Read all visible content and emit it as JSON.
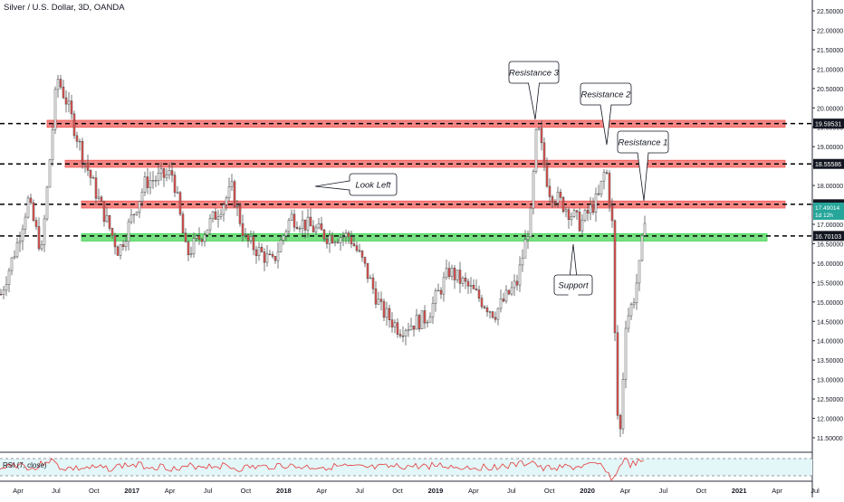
{
  "chart_data": {
    "type": "candlestick",
    "title": "Silver / U.S. Dollar, 3D, OANDA",
    "ylim": [
      11.5,
      22.5
    ],
    "y_ticks": [
      "22.50000",
      "22.00000",
      "21.50000",
      "21.00000",
      "20.50000",
      "20.00000",
      "19.50000",
      "19.00000",
      "18.50000",
      "18.00000",
      "17.50000",
      "17.00000",
      "16.50000",
      "16.00000",
      "15.50000",
      "15.00000",
      "14.50000",
      "14.00000",
      "13.50000",
      "13.00000",
      "12.50000",
      "12.00000",
      "11.50000"
    ],
    "x_ticks": [
      "Apr",
      "Jul",
      "Oct",
      "2017",
      "Apr",
      "Jul",
      "Oct",
      "2018",
      "Apr",
      "Jul",
      "Oct",
      "2019",
      "Apr",
      "Jul",
      "Oct",
      "2020",
      "Apr",
      "Jul",
      "Oct",
      "2021",
      "Apr",
      "Jul"
    ],
    "horizontal_levels": [
      {
        "value": 19.59531,
        "label": "19.59531",
        "zone": [
          19.5,
          19.68
        ],
        "zone_color": "#ef5350"
      },
      {
        "value": 18.55586,
        "label": "18.55586",
        "zone": [
          18.47,
          18.65
        ],
        "zone_color": "#ef5350"
      },
      {
        "value": 17.51651,
        "label": "17.51651",
        "zone": [
          17.42,
          17.6
        ],
        "zone_color": "#ef5350"
      },
      {
        "value": 16.70103,
        "label": "16.70103",
        "zone": [
          16.57,
          16.76
        ],
        "zone_color": "#3ed34f"
      }
    ],
    "current_price": {
      "value": "17.49014",
      "countdown": "1d 12h",
      "color": "#26a69a"
    },
    "annotations": [
      "Resistance 3",
      "Resistance 2",
      "Resistance 1",
      "Look Left",
      "Support"
    ],
    "key_prices": {
      "start": 15.2,
      "peak_2016": 21.1,
      "low_2018": 13.9,
      "peak_2019": 19.6,
      "crash_low_2020": 11.7,
      "last": 17.49
    },
    "rsi": {
      "label": "RSI (7, close)",
      "color": "#e53935",
      "band_color": "#e3f6f8"
    },
    "colors": {
      "up": "#26a69a",
      "down": "#ef5350",
      "candle": "#4a4a4a"
    }
  }
}
